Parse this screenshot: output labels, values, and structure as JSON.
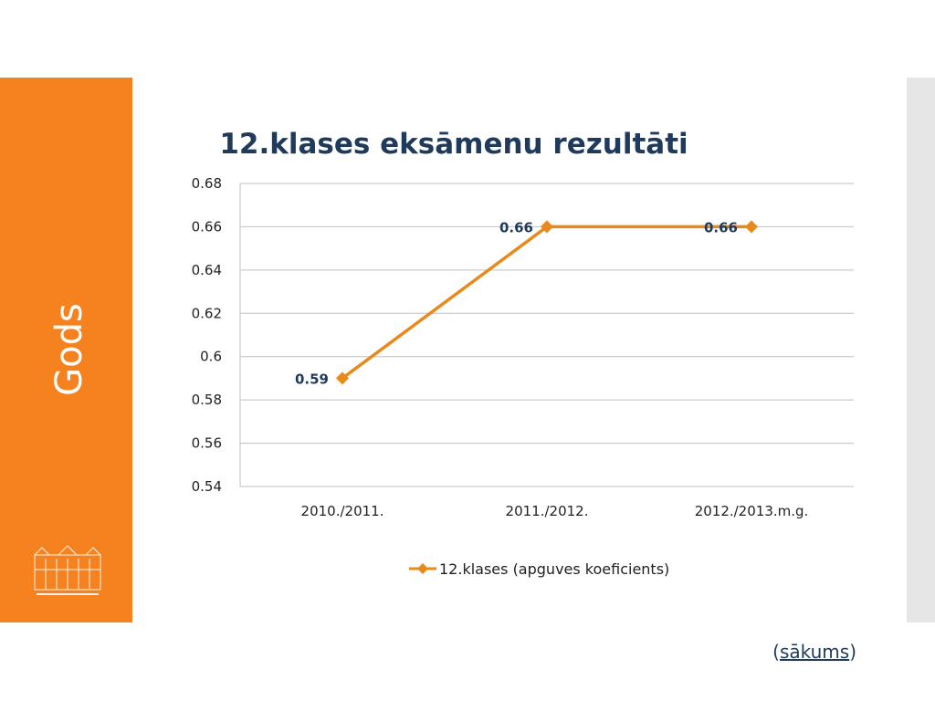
{
  "slide": {
    "side_title": "Gods",
    "footer_open": "(",
    "footer_link": "sākums",
    "footer_close": ")"
  },
  "colors": {
    "accent": "#f5821f",
    "series": "#e8891c",
    "text": "#1f3a5a",
    "grid": "#bfbfbf",
    "side_band": "#e6e6e6"
  },
  "chart_data": {
    "type": "line",
    "title": "12.klases eksāmenu rezultāti",
    "xlabel": "",
    "ylabel": "",
    "categories": [
      "2010./2011.",
      "2011./2012.",
      "2012./2013.m.g."
    ],
    "series": [
      {
        "name": "12.klases (apguves koeficients)",
        "values": [
          0.59,
          0.66,
          0.66
        ],
        "data_labels": [
          "0.59",
          "0.66",
          "0.66"
        ],
        "marker": "diamond"
      }
    ],
    "ylim": [
      0.54,
      0.68
    ],
    "yticks": [
      0.54,
      0.56,
      0.58,
      0.6,
      0.62,
      0.64,
      0.66,
      0.68
    ],
    "ytick_labels": [
      "0.54",
      "0.56",
      "0.58",
      "0.6",
      "0.62",
      "0.64",
      "0.66",
      "0.68"
    ],
    "grid": true,
    "legend": "bottom"
  }
}
